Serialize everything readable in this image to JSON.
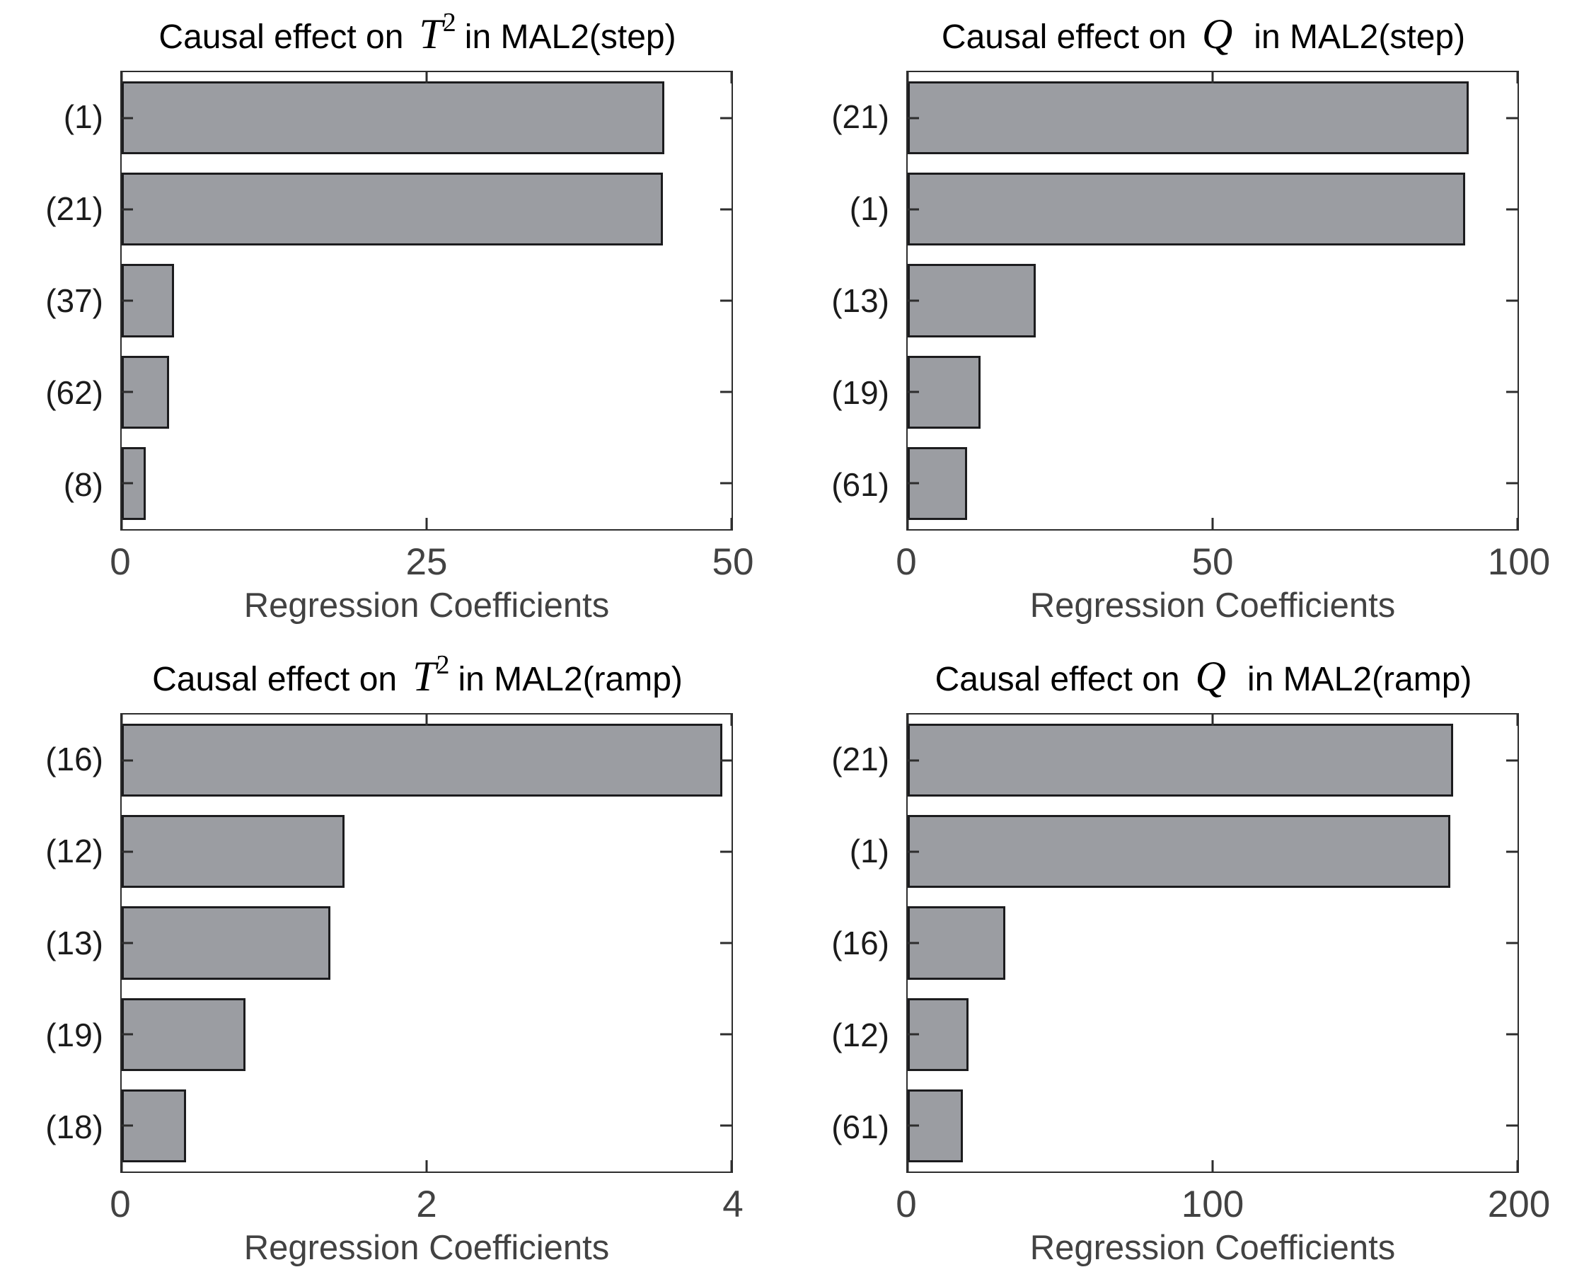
{
  "figure": {
    "background": "#ffffff",
    "bar_fill": "#9b9da2",
    "bar_edge": "#1c1c1e",
    "axis_color": "#2d2d2d",
    "title_color": "#000000",
    "category_text_color": "#1b1b1b",
    "tick_text_color": "#424242"
  },
  "chart_data": [
    {
      "type": "bar",
      "orientation": "horizontal",
      "title_prefix": "Causal effect on",
      "title_symbol": "T",
      "title_symbol_sup": "2",
      "title_suffix": "in MAL2(step)",
      "categories": [
        "(1)",
        "(21)",
        "(37)",
        "(62)",
        "(8)"
      ],
      "values": [
        44.5,
        44.4,
        4.3,
        3.9,
        2.0
      ],
      "xlabel": "Regression Coefficients",
      "xlim": [
        0,
        50
      ],
      "xticks": [
        0,
        25,
        50
      ],
      "grid": false,
      "legend": false
    },
    {
      "type": "bar",
      "orientation": "horizontal",
      "title_prefix": "Causal effect on",
      "title_symbol": "Q",
      "title_symbol_sup": "",
      "title_suffix": "in MAL2(step)",
      "categories": [
        "(21)",
        "(1)",
        "(13)",
        "(19)",
        "(61)"
      ],
      "values": [
        92,
        91.4,
        21,
        12,
        9.7
      ],
      "xlabel": "Regression Coefficients",
      "xlim": [
        0,
        100
      ],
      "xticks": [
        0,
        50,
        100
      ],
      "grid": false,
      "legend": false
    },
    {
      "type": "bar",
      "orientation": "horizontal",
      "title_prefix": "Causal effect on",
      "title_symbol": "T",
      "title_symbol_sup": "2",
      "title_suffix": "in MAL2(ramp)",
      "categories": [
        "(16)",
        "(12)",
        "(13)",
        "(19)",
        "(18)"
      ],
      "values": [
        3.94,
        1.46,
        1.37,
        0.81,
        0.42
      ],
      "xlabel": "Regression Coefficients",
      "xlim": [
        0,
        4
      ],
      "xticks": [
        0,
        2,
        4
      ],
      "grid": false,
      "legend": false
    },
    {
      "type": "bar",
      "orientation": "horizontal",
      "title_prefix": "Causal effect on",
      "title_symbol": "Q",
      "title_symbol_sup": "",
      "title_suffix": "in MAL2(ramp)",
      "categories": [
        "(21)",
        "(1)",
        "(16)",
        "(12)",
        "(61)"
      ],
      "values": [
        179,
        178,
        32,
        20,
        18
      ],
      "xlabel": "Regression Coefficients",
      "xlim": [
        0,
        200
      ],
      "xticks": [
        0,
        100,
        200
      ],
      "grid": false,
      "legend": false
    }
  ]
}
